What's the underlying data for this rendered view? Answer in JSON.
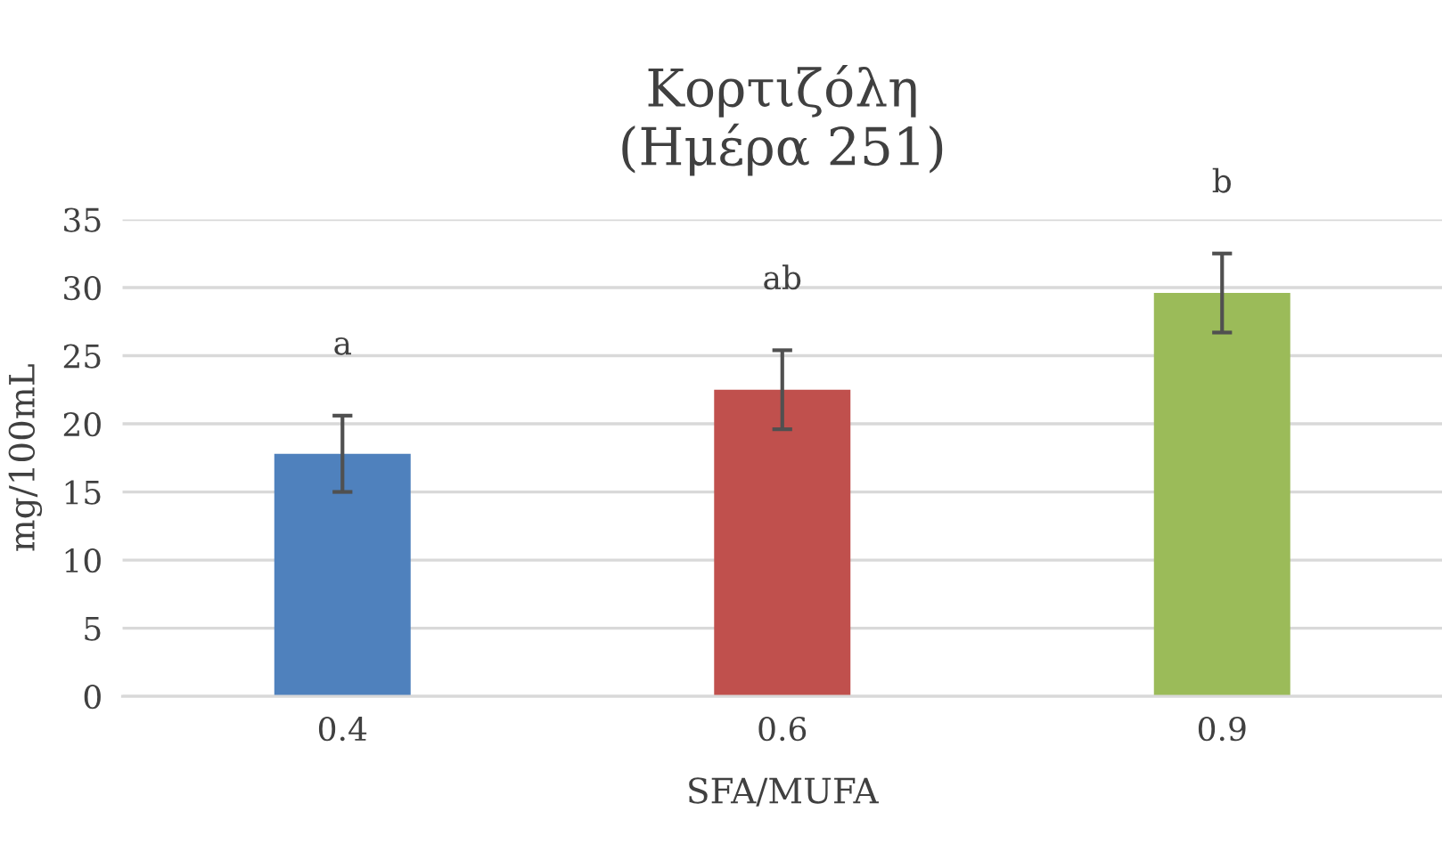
{
  "chart_data": {
    "type": "bar",
    "title": "Κορτιζόλη\n(Ημέρα 251)",
    "xlabel": "SFA/MUFA",
    "ylabel": "mg/100mL",
    "categories": [
      "0.4",
      "0.6",
      "0.9"
    ],
    "values": [
      17.8,
      22.5,
      29.6
    ],
    "colors": [
      "#4f81bd",
      "#c0504d",
      "#9bbb59"
    ],
    "errors": [
      2.8,
      2.9,
      2.9
    ],
    "ylim": [
      0,
      35
    ],
    "yticks": [
      0,
      5,
      10,
      15,
      20,
      25,
      30,
      35
    ],
    "grid": "y",
    "legend": false,
    "annotations": [
      "a",
      "ab",
      "b"
    ]
  }
}
